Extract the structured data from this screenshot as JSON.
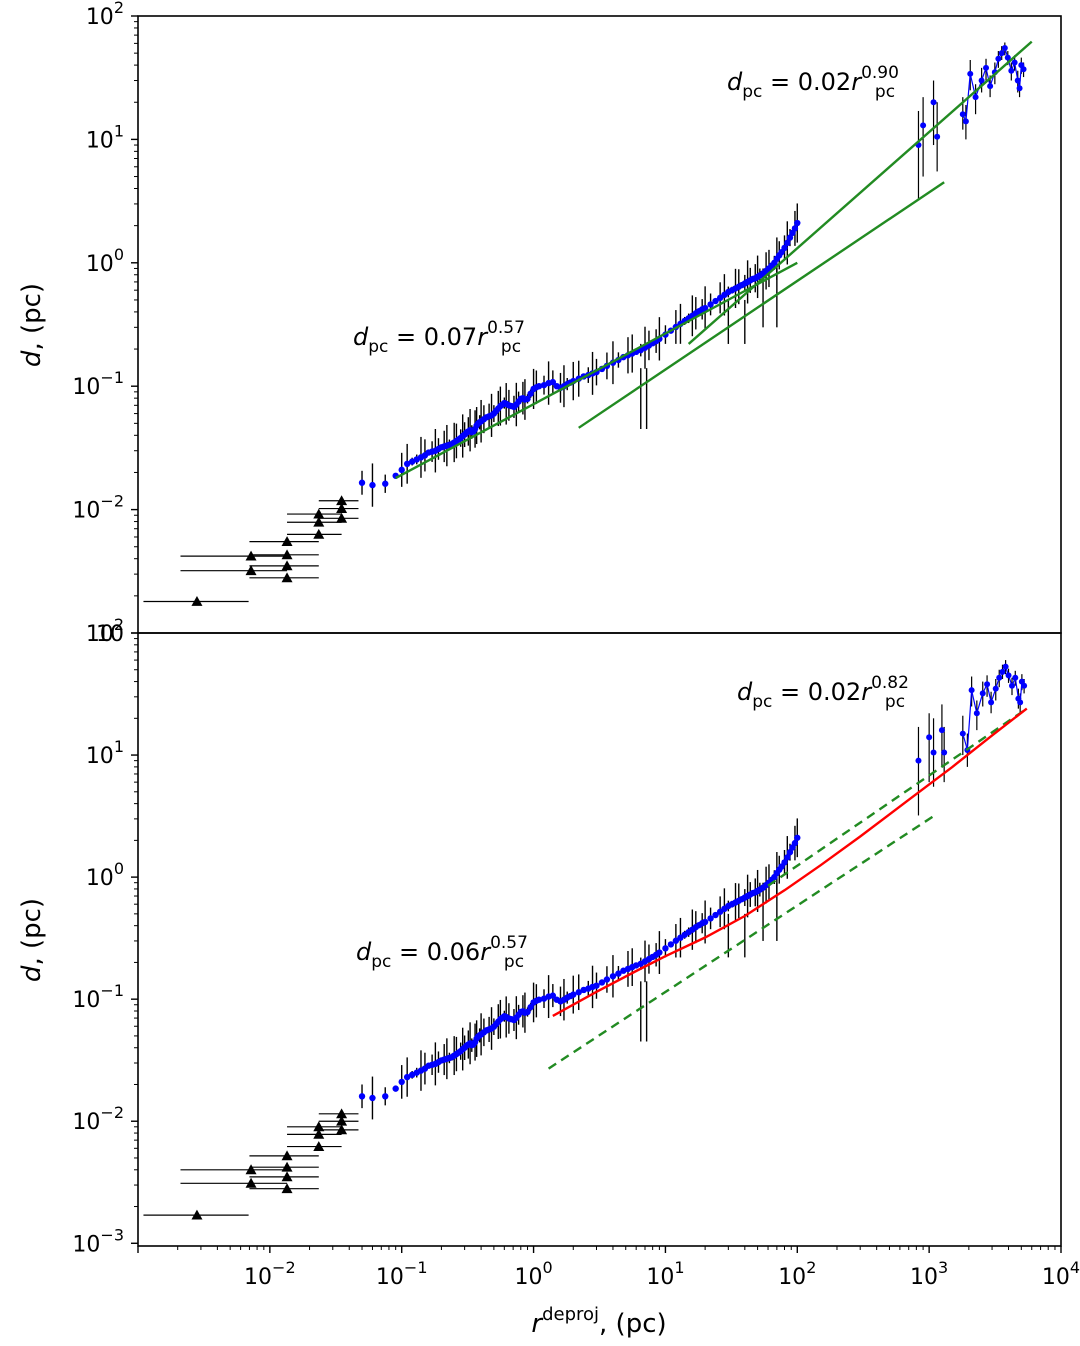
{
  "chart_data": [
    {
      "panel": "top",
      "type": "scatter",
      "xscale": "log",
      "yscale": "log",
      "xlim": [
        0.001,
        10000
      ],
      "ylim": [
        0.001,
        100
      ],
      "ylabel_italic": "d",
      "ylabel_rest": ", (pc)",
      "xlabel": "",
      "yticks": [
        {
          "value": 0.001,
          "base": "10",
          "exp": ""
        },
        {
          "value": 0.01,
          "base": "10",
          "exp": "−2"
        },
        {
          "value": 0.1,
          "base": "10",
          "exp": "−1"
        },
        {
          "value": 1,
          "base": "10",
          "exp": "0"
        },
        {
          "value": 10,
          "base": "10",
          "exp": "1"
        },
        {
          "value": 100,
          "base": "10",
          "exp": "2"
        }
      ],
      "annotations": [
        {
          "at": [
            0.45,
            32
          ],
          "coef": "0.02",
          "exp": "0.90"
        },
        {
          "at": [
            0.007,
            0.28
          ],
          "coef": "0.07",
          "exp": "0.57"
        }
      ],
      "fit_lines": [
        {
          "x": [
            0.09,
            100
          ],
          "y": [
            0.018,
            1.0
          ],
          "color": "#228b22",
          "dash": false
        },
        {
          "x": [
            2.2,
            1300
          ],
          "y": [
            0.046,
            4.5
          ],
          "color": "#228b22",
          "dash": false
        },
        {
          "x": [
            15,
            6000
          ],
          "y": [
            0.22,
            62
          ],
          "color": "#228b22",
          "dash": false
        }
      ],
      "triangles": [
        {
          "x": 0.0028,
          "y": 0.0018,
          "xlo": 0.0011,
          "xhi": 0.0069
        },
        {
          "x": 0.0072,
          "y": 0.0032,
          "xlo": 0.0021,
          "xhi": 0.0135
        },
        {
          "x": 0.0072,
          "y": 0.0042,
          "xlo": 0.0021,
          "xhi": 0.0135
        },
        {
          "x": 0.0135,
          "y": 0.0028,
          "xlo": 0.007,
          "xhi": 0.0235
        },
        {
          "x": 0.0135,
          "y": 0.0035,
          "xlo": 0.007,
          "xhi": 0.0235
        },
        {
          "x": 0.0135,
          "y": 0.0043,
          "xlo": 0.007,
          "xhi": 0.0235
        },
        {
          "x": 0.0135,
          "y": 0.0055,
          "xlo": 0.007,
          "xhi": 0.0235
        },
        {
          "x": 0.0235,
          "y": 0.0063,
          "xlo": 0.0135,
          "xhi": 0.035
        },
        {
          "x": 0.0235,
          "y": 0.0079,
          "xlo": 0.0135,
          "xhi": 0.035
        },
        {
          "x": 0.0235,
          "y": 0.0092,
          "xlo": 0.0135,
          "xhi": 0.035
        },
        {
          "x": 0.035,
          "y": 0.0085,
          "xlo": 0.0235,
          "xhi": 0.047
        },
        {
          "x": 0.035,
          "y": 0.0102,
          "xlo": 0.0235,
          "xhi": 0.047
        },
        {
          "x": 0.035,
          "y": 0.0118,
          "xlo": 0.0235,
          "xhi": 0.047
        }
      ],
      "inner_x": [
        0.05,
        0.06,
        0.075,
        0.09,
        0.1,
        0.11,
        0.12,
        0.13,
        0.14,
        0.15,
        0.16,
        0.17,
        0.18,
        0.19,
        0.2,
        0.21,
        0.22,
        0.23,
        0.24,
        0.25,
        0.26,
        0.27,
        0.28,
        0.29,
        0.3,
        0.31,
        0.32,
        0.33,
        0.34,
        0.35,
        0.36,
        0.37,
        0.38,
        0.39,
        0.4,
        0.42,
        0.44,
        0.46,
        0.48,
        0.5,
        0.52,
        0.54,
        0.56,
        0.58,
        0.6,
        0.62,
        0.65,
        0.68,
        0.71,
        0.74,
        0.77,
        0.8,
        0.83,
        0.86,
        0.9,
        0.95,
        1.0,
        1.05,
        1.1,
        1.2,
        1.3,
        1.4,
        1.5,
        1.6,
        1.7,
        1.8,
        1.9,
        2.0,
        2.2,
        2.4,
        2.6,
        2.8,
        3.0,
        3.3,
        3.6,
        4.0,
        4.4,
        4.8,
        5.2,
        5.6,
        6.0,
        6.5,
        7.0,
        7.5,
        8.0,
        8.5,
        9.0,
        10,
        11,
        12,
        13,
        14,
        15,
        16,
        17,
        18,
        19,
        20,
        22,
        24,
        26,
        28,
        30,
        32,
        34,
        36,
        38,
        40,
        42,
        44,
        46,
        48,
        50,
        52,
        55,
        58,
        61,
        64,
        67,
        70,
        73,
        76,
        80,
        84,
        88,
        92,
        96,
        100
      ],
      "inner_y": [
        0.0165,
        0.0158,
        0.0162,
        0.0188,
        0.021,
        0.0235,
        0.0245,
        0.0255,
        0.0265,
        0.0275,
        0.029,
        0.0295,
        0.03,
        0.031,
        0.032,
        0.0325,
        0.033,
        0.0335,
        0.034,
        0.035,
        0.036,
        0.037,
        0.038,
        0.0395,
        0.0405,
        0.042,
        0.043,
        0.044,
        0.0425,
        0.043,
        0.045,
        0.048,
        0.05,
        0.051,
        0.052,
        0.054,
        0.056,
        0.057,
        0.058,
        0.06,
        0.063,
        0.066,
        0.069,
        0.071,
        0.073,
        0.072,
        0.07,
        0.069,
        0.068,
        0.071,
        0.075,
        0.079,
        0.08,
        0.078,
        0.079,
        0.087,
        0.095,
        0.098,
        0.1,
        0.102,
        0.106,
        0.108,
        0.1,
        0.097,
        0.1,
        0.104,
        0.107,
        0.11,
        0.115,
        0.12,
        0.123,
        0.127,
        0.13,
        0.138,
        0.146,
        0.155,
        0.163,
        0.172,
        0.178,
        0.184,
        0.19,
        0.196,
        0.205,
        0.214,
        0.223,
        0.232,
        0.242,
        0.262,
        0.282,
        0.302,
        0.32,
        0.338,
        0.355,
        0.372,
        0.39,
        0.405,
        0.42,
        0.43,
        0.46,
        0.49,
        0.52,
        0.55,
        0.58,
        0.6,
        0.62,
        0.64,
        0.66,
        0.68,
        0.7,
        0.72,
        0.74,
        0.75,
        0.77,
        0.79,
        0.82,
        0.86,
        0.9,
        0.95,
        1.0,
        1.08,
        1.15,
        1.22,
        1.32,
        1.45,
        1.6,
        1.75,
        1.9,
        2.1
      ],
      "outer_points": [
        {
          "x": 830,
          "y": 9,
          "lo": 3.2,
          "hi": 17
        },
        {
          "x": 900,
          "y": 13,
          "lo": 5,
          "hi": 22
        },
        {
          "x": 1080,
          "y": 20,
          "lo": 9,
          "hi": 30
        },
        {
          "x": 1150,
          "y": 10.5,
          "lo": 5.5,
          "hi": 20
        },
        {
          "x": 1800,
          "y": 16,
          "lo": 12,
          "hi": 22
        },
        {
          "x": 1900,
          "y": 14,
          "lo": 10,
          "hi": 19
        },
        {
          "x": 2050,
          "y": 34,
          "lo": 25,
          "hi": 44
        },
        {
          "x": 2250,
          "y": 22,
          "lo": 16,
          "hi": 28
        },
        {
          "x": 2500,
          "y": 30,
          "lo": 24,
          "hi": 38
        },
        {
          "x": 2700,
          "y": 38,
          "lo": 30,
          "hi": 45
        },
        {
          "x": 2900,
          "y": 27,
          "lo": 22,
          "hi": 33
        },
        {
          "x": 3150,
          "y": 35,
          "lo": 28,
          "hi": 42
        },
        {
          "x": 3350,
          "y": 45,
          "lo": 38,
          "hi": 52
        },
        {
          "x": 3550,
          "y": 50,
          "lo": 44,
          "hi": 57
        },
        {
          "x": 3750,
          "y": 55,
          "lo": 48,
          "hi": 61
        },
        {
          "x": 3950,
          "y": 46,
          "lo": 40,
          "hi": 52
        },
        {
          "x": 4200,
          "y": 36,
          "lo": 30,
          "hi": 42
        },
        {
          "x": 4450,
          "y": 42,
          "lo": 36,
          "hi": 48
        },
        {
          "x": 4700,
          "y": 30,
          "lo": 24,
          "hi": 36
        },
        {
          "x": 4850,
          "y": 26,
          "lo": 22,
          "hi": 31
        },
        {
          "x": 5000,
          "y": 40,
          "lo": 34,
          "hi": 46
        },
        {
          "x": 5200,
          "y": 37,
          "lo": 32,
          "hi": 42
        }
      ]
    },
    {
      "panel": "bottom",
      "type": "scatter",
      "xscale": "log",
      "yscale": "log",
      "xlim": [
        0.001,
        10000
      ],
      "ylim": [
        0.00095,
        100
      ],
      "ylabel_italic": "d",
      "ylabel_rest": ", (pc)",
      "xlabel_italic": "r",
      "xlabel_sup": "deproj",
      "xlabel_rest": ", (pc)",
      "yticks": [
        {
          "value": 0.001,
          "base": "10",
          "exp": "−3"
        },
        {
          "value": 0.01,
          "base": "10",
          "exp": "−2"
        },
        {
          "value": 0.1,
          "base": "10",
          "exp": "−1"
        },
        {
          "value": 1,
          "base": "10",
          "exp": "0"
        },
        {
          "value": 10,
          "base": "10",
          "exp": "1"
        },
        {
          "value": 100,
          "base": "10",
          "exp": "2"
        }
      ],
      "xticks": [
        {
          "value": 0.01,
          "base": "10",
          "exp": "−2"
        },
        {
          "value": 0.1,
          "base": "10",
          "exp": "−1"
        },
        {
          "value": 1,
          "base": "10",
          "exp": "0"
        },
        {
          "value": 10,
          "base": "10",
          "exp": "1"
        },
        {
          "value": 100,
          "base": "10",
          "exp": "2"
        },
        {
          "value": 1000,
          "base": "10",
          "exp": "3"
        },
        {
          "value": 10000,
          "base": "10",
          "exp": "4"
        }
      ],
      "annotations": [
        {
          "at": [
            0.48,
            30
          ],
          "coef": "0.02",
          "exp": "0.82"
        },
        {
          "at": [
            0.007,
            0.26
          ],
          "coef": "0.06",
          "exp": "0.57"
        }
      ],
      "fit_lines": [
        {
          "x": [
            1.3,
            1100
          ],
          "y": [
            0.027,
            3.2
          ],
          "color": "#228b22",
          "dash": true
        },
        {
          "x": [
            60,
            5500
          ],
          "y": [
            0.85,
            24
          ],
          "color": "#228b22",
          "dash": true
        }
      ],
      "fit_curve": {
        "x": [
          1.4,
          3,
          6,
          10,
          20,
          40,
          80,
          150,
          300,
          700,
          1500,
          3000,
          5500
        ],
        "y": [
          0.073,
          0.115,
          0.17,
          0.225,
          0.32,
          0.48,
          0.78,
          1.25,
          2.15,
          4.3,
          8.0,
          14.5,
          24
        ],
        "color": "#ff0000"
      },
      "triangles": [
        {
          "x": 0.0028,
          "y": 0.0017,
          "xlo": 0.0011,
          "xhi": 0.0069
        },
        {
          "x": 0.0072,
          "y": 0.0031,
          "xlo": 0.0021,
          "xhi": 0.0135
        },
        {
          "x": 0.0072,
          "y": 0.004,
          "xlo": 0.0021,
          "xhi": 0.0135
        },
        {
          "x": 0.0135,
          "y": 0.0028,
          "xlo": 0.007,
          "xhi": 0.0235
        },
        {
          "x": 0.0135,
          "y": 0.0035,
          "xlo": 0.007,
          "xhi": 0.0235
        },
        {
          "x": 0.0135,
          "y": 0.0042,
          "xlo": 0.007,
          "xhi": 0.0235
        },
        {
          "x": 0.0135,
          "y": 0.0052,
          "xlo": 0.007,
          "xhi": 0.0235
        },
        {
          "x": 0.0235,
          "y": 0.0062,
          "xlo": 0.0135,
          "xhi": 0.035
        },
        {
          "x": 0.0235,
          "y": 0.0078,
          "xlo": 0.0135,
          "xhi": 0.035
        },
        {
          "x": 0.0235,
          "y": 0.009,
          "xlo": 0.0135,
          "xhi": 0.035
        },
        {
          "x": 0.035,
          "y": 0.0085,
          "xlo": 0.0235,
          "xhi": 0.047
        },
        {
          "x": 0.035,
          "y": 0.01,
          "xlo": 0.0235,
          "xhi": 0.047
        },
        {
          "x": 0.035,
          "y": 0.0115,
          "xlo": 0.0235,
          "xhi": 0.047
        }
      ],
      "inner_x": [
        0.05,
        0.06,
        0.075,
        0.09,
        0.1,
        0.11,
        0.12,
        0.13,
        0.14,
        0.15,
        0.16,
        0.17,
        0.18,
        0.19,
        0.2,
        0.21,
        0.22,
        0.23,
        0.24,
        0.25,
        0.26,
        0.27,
        0.28,
        0.29,
        0.3,
        0.31,
        0.32,
        0.33,
        0.34,
        0.35,
        0.36,
        0.37,
        0.38,
        0.39,
        0.4,
        0.42,
        0.44,
        0.46,
        0.48,
        0.5,
        0.52,
        0.54,
        0.56,
        0.58,
        0.6,
        0.62,
        0.65,
        0.68,
        0.71,
        0.74,
        0.77,
        0.8,
        0.83,
        0.86,
        0.9,
        0.95,
        1.0,
        1.05,
        1.1,
        1.2,
        1.3,
        1.4,
        1.5,
        1.6,
        1.7,
        1.8,
        1.9,
        2.0,
        2.2,
        2.4,
        2.6,
        2.8,
        3.0,
        3.3,
        3.6,
        4.0,
        4.4,
        4.8,
        5.2,
        5.6,
        6.0,
        6.5,
        7.0,
        7.5,
        8.0,
        8.5,
        9.0,
        10,
        11,
        12,
        13,
        14,
        15,
        16,
        17,
        18,
        19,
        20,
        22,
        24,
        26,
        28,
        30,
        32,
        34,
        36,
        38,
        40,
        42,
        44,
        46,
        48,
        50,
        52,
        55,
        58,
        61,
        64,
        67,
        70,
        73,
        76,
        80,
        84,
        88,
        92,
        96,
        100
      ],
      "inner_y": [
        0.016,
        0.0155,
        0.016,
        0.0185,
        0.021,
        0.023,
        0.024,
        0.025,
        0.026,
        0.027,
        0.0285,
        0.029,
        0.0295,
        0.0305,
        0.0315,
        0.032,
        0.0325,
        0.033,
        0.0335,
        0.0345,
        0.0355,
        0.0365,
        0.0375,
        0.039,
        0.04,
        0.0415,
        0.0425,
        0.0435,
        0.042,
        0.0425,
        0.0445,
        0.0475,
        0.0495,
        0.0505,
        0.0515,
        0.0535,
        0.0555,
        0.0565,
        0.0575,
        0.0595,
        0.0625,
        0.0655,
        0.0685,
        0.0705,
        0.0725,
        0.0715,
        0.0695,
        0.0685,
        0.0675,
        0.0705,
        0.0745,
        0.0785,
        0.0795,
        0.0775,
        0.0785,
        0.086,
        0.094,
        0.097,
        0.099,
        0.101,
        0.105,
        0.107,
        0.099,
        0.096,
        0.099,
        0.103,
        0.106,
        0.109,
        0.114,
        0.119,
        0.122,
        0.126,
        0.129,
        0.137,
        0.145,
        0.154,
        0.162,
        0.171,
        0.177,
        0.183,
        0.189,
        0.195,
        0.204,
        0.213,
        0.222,
        0.231,
        0.241,
        0.261,
        0.281,
        0.301,
        0.319,
        0.337,
        0.354,
        0.371,
        0.389,
        0.404,
        0.419,
        0.429,
        0.459,
        0.489,
        0.52,
        0.55,
        0.58,
        0.6,
        0.62,
        0.64,
        0.66,
        0.68,
        0.7,
        0.72,
        0.74,
        0.75,
        0.77,
        0.79,
        0.82,
        0.86,
        0.9,
        0.95,
        1.0,
        1.08,
        1.15,
        1.22,
        1.32,
        1.45,
        1.6,
        1.75,
        1.9,
        2.1
      ],
      "outer_points": [
        {
          "x": 830,
          "y": 9,
          "lo": 3.2,
          "hi": 17
        },
        {
          "x": 1000,
          "y": 14,
          "lo": 6,
          "hi": 22
        },
        {
          "x": 1080,
          "y": 10.5,
          "lo": 5.5,
          "hi": 20
        },
        {
          "x": 1250,
          "y": 16,
          "lo": 8,
          "hi": 26
        },
        {
          "x": 1300,
          "y": 10.5,
          "lo": 6,
          "hi": 17
        },
        {
          "x": 1800,
          "y": 15,
          "lo": 10,
          "hi": 21
        },
        {
          "x": 1950,
          "y": 11,
          "lo": 8,
          "hi": 15
        },
        {
          "x": 2100,
          "y": 34,
          "lo": 25,
          "hi": 44
        },
        {
          "x": 2300,
          "y": 22,
          "lo": 16,
          "hi": 28
        },
        {
          "x": 2550,
          "y": 32,
          "lo": 25,
          "hi": 40
        },
        {
          "x": 2750,
          "y": 38,
          "lo": 30,
          "hi": 45
        },
        {
          "x": 2950,
          "y": 27,
          "lo": 22,
          "hi": 33
        },
        {
          "x": 3200,
          "y": 35,
          "lo": 28,
          "hi": 42
        },
        {
          "x": 3400,
          "y": 43,
          "lo": 36,
          "hi": 50
        },
        {
          "x": 3600,
          "y": 48,
          "lo": 42,
          "hi": 55
        },
        {
          "x": 3800,
          "y": 53,
          "lo": 46,
          "hi": 60
        },
        {
          "x": 4000,
          "y": 45,
          "lo": 39,
          "hi": 51
        },
        {
          "x": 4250,
          "y": 37,
          "lo": 31,
          "hi": 43
        },
        {
          "x": 4500,
          "y": 43,
          "lo": 37,
          "hi": 49
        },
        {
          "x": 4750,
          "y": 29,
          "lo": 24,
          "hi": 35
        },
        {
          "x": 4900,
          "y": 27,
          "lo": 22,
          "hi": 32
        },
        {
          "x": 5050,
          "y": 40,
          "lo": 34,
          "hi": 46
        },
        {
          "x": 5250,
          "y": 37,
          "lo": 32,
          "hi": 42
        }
      ]
    }
  ]
}
